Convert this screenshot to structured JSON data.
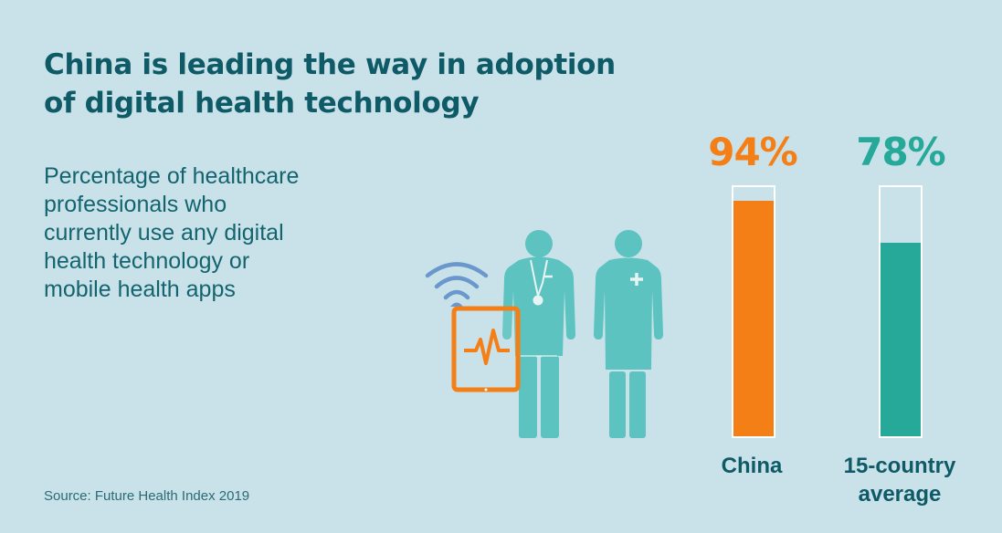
{
  "title": {
    "line1": "China is leading the way in adoption",
    "line2": "of digital health technology"
  },
  "subtitle": {
    "lines": [
      "Percentage of healthcare",
      "professionals who",
      "currently use any digital",
      "health technology or",
      "mobile health apps"
    ]
  },
  "source": "Source: Future Health Index 2019",
  "colors": {
    "background": "#c9e2e9",
    "china": "#f47f17",
    "average": "#27a99a",
    "title_text": "#0e5a66",
    "illustration": "#5cc3c0",
    "wifi": "#6a98cc"
  },
  "illustration": {
    "icons": [
      "wifi-icon",
      "tablet-heartbeat-icon",
      "doctor-figure-icon",
      "nurse-figure-icon"
    ]
  },
  "chart_data": {
    "type": "bar",
    "title": "China is leading the way in adoption of digital health technology",
    "subtitle": "Percentage of healthcare professionals who currently use any digital health technology or mobile health apps",
    "categories": [
      "China",
      "15-country average"
    ],
    "values": [
      94,
      78
    ],
    "value_labels": [
      "94%",
      "78%"
    ],
    "colors": [
      "#f47f17",
      "#27a99a"
    ],
    "xlabel": "",
    "ylabel": "",
    "ylim": [
      0,
      100
    ],
    "grid": false,
    "legend": "none",
    "source": "Source: Future Health Index 2019"
  },
  "bars": [
    {
      "label_line1": "China",
      "label_line2": "",
      "value_label": "94%"
    },
    {
      "label_line1": "15-country",
      "label_line2": "average",
      "value_label": "78%"
    }
  ]
}
